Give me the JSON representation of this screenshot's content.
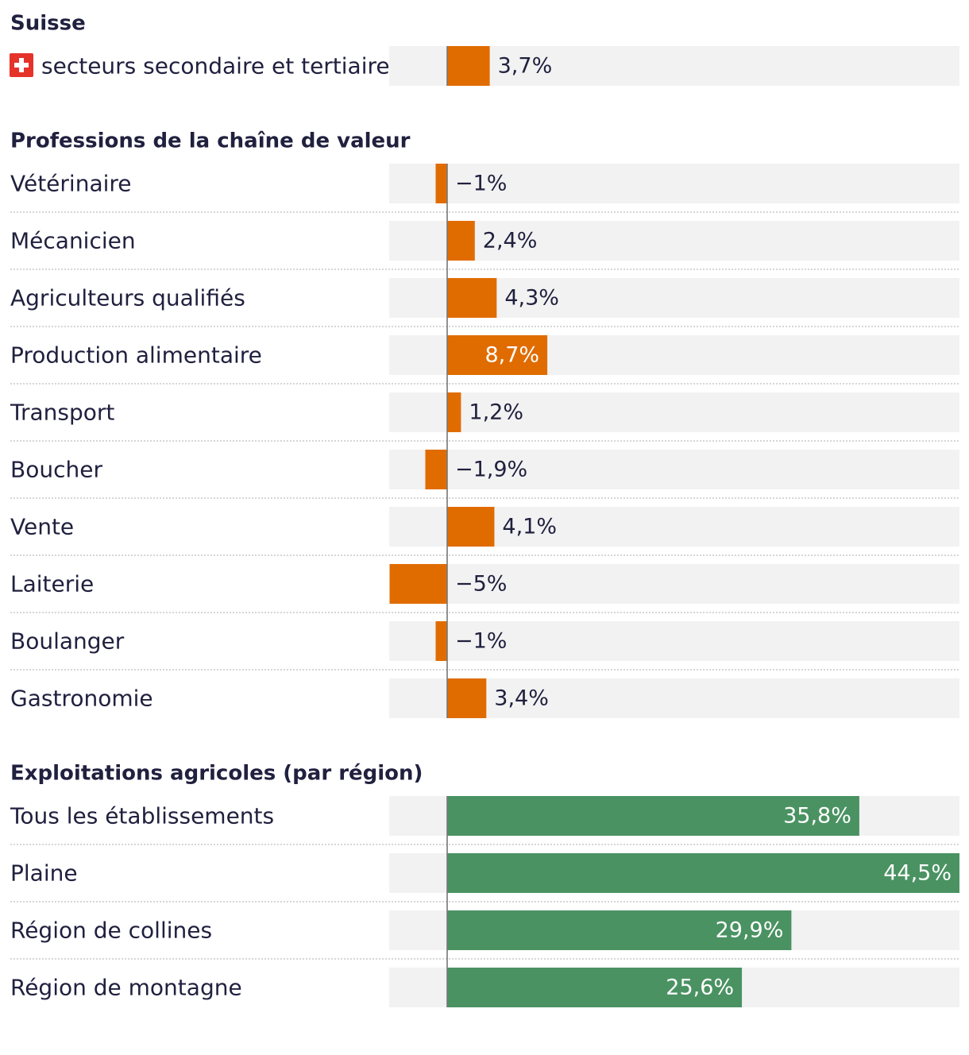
{
  "colors": {
    "track": "#f2f2f2",
    "negative_or_occupation": "#e06c00",
    "farm": "#4a9262",
    "axis": "#777777",
    "separator": "#c9c9c9",
    "text_dark": "#20203f",
    "text_light": "#ffffff"
  },
  "chart_data": {
    "type": "bar",
    "orientation": "horizontal",
    "unit": "%",
    "xlim": [
      -5,
      44.5
    ],
    "groups": [
      {
        "heading": "Suisse",
        "color": "#e06c00",
        "items": [
          {
            "label": "secteurs secondaire et tertiaire",
            "value": 3.7,
            "display": "3,7%",
            "icon": "swiss-flag-icon"
          }
        ]
      },
      {
        "heading": "Professions de la chaîne de valeur",
        "color": "#e06c00",
        "items": [
          {
            "label": "Vétérinaire",
            "value": -1,
            "display": "−1%"
          },
          {
            "label": "Mécanicien",
            "value": 2.4,
            "display": "2,4%"
          },
          {
            "label": "Agriculteurs qualifiés",
            "value": 4.3,
            "display": "4,3%"
          },
          {
            "label": "Production alimentaire",
            "value": 8.7,
            "display": "8,7%"
          },
          {
            "label": "Transport",
            "value": 1.2,
            "display": "1,2%"
          },
          {
            "label": "Boucher",
            "value": -1.9,
            "display": "−1,9%"
          },
          {
            "label": "Vente",
            "value": 4.1,
            "display": "4,1%"
          },
          {
            "label": "Laiterie",
            "value": -5,
            "display": "−5%"
          },
          {
            "label": "Boulanger",
            "value": -1,
            "display": "−1%"
          },
          {
            "label": "Gastronomie",
            "value": 3.4,
            "display": "3,4%"
          }
        ]
      },
      {
        "heading": "Exploitations agricoles (par région)",
        "color": "#4a9262",
        "items": [
          {
            "label": "Tous les établissements",
            "value": 35.8,
            "display": "35,8%"
          },
          {
            "label": "Plaine",
            "value": 44.5,
            "display": "44,5%"
          },
          {
            "label": "Région de collines",
            "value": 29.9,
            "display": "29,9%"
          },
          {
            "label": "Région de montagne",
            "value": 25.6,
            "display": "25,6%"
          }
        ]
      }
    ]
  }
}
